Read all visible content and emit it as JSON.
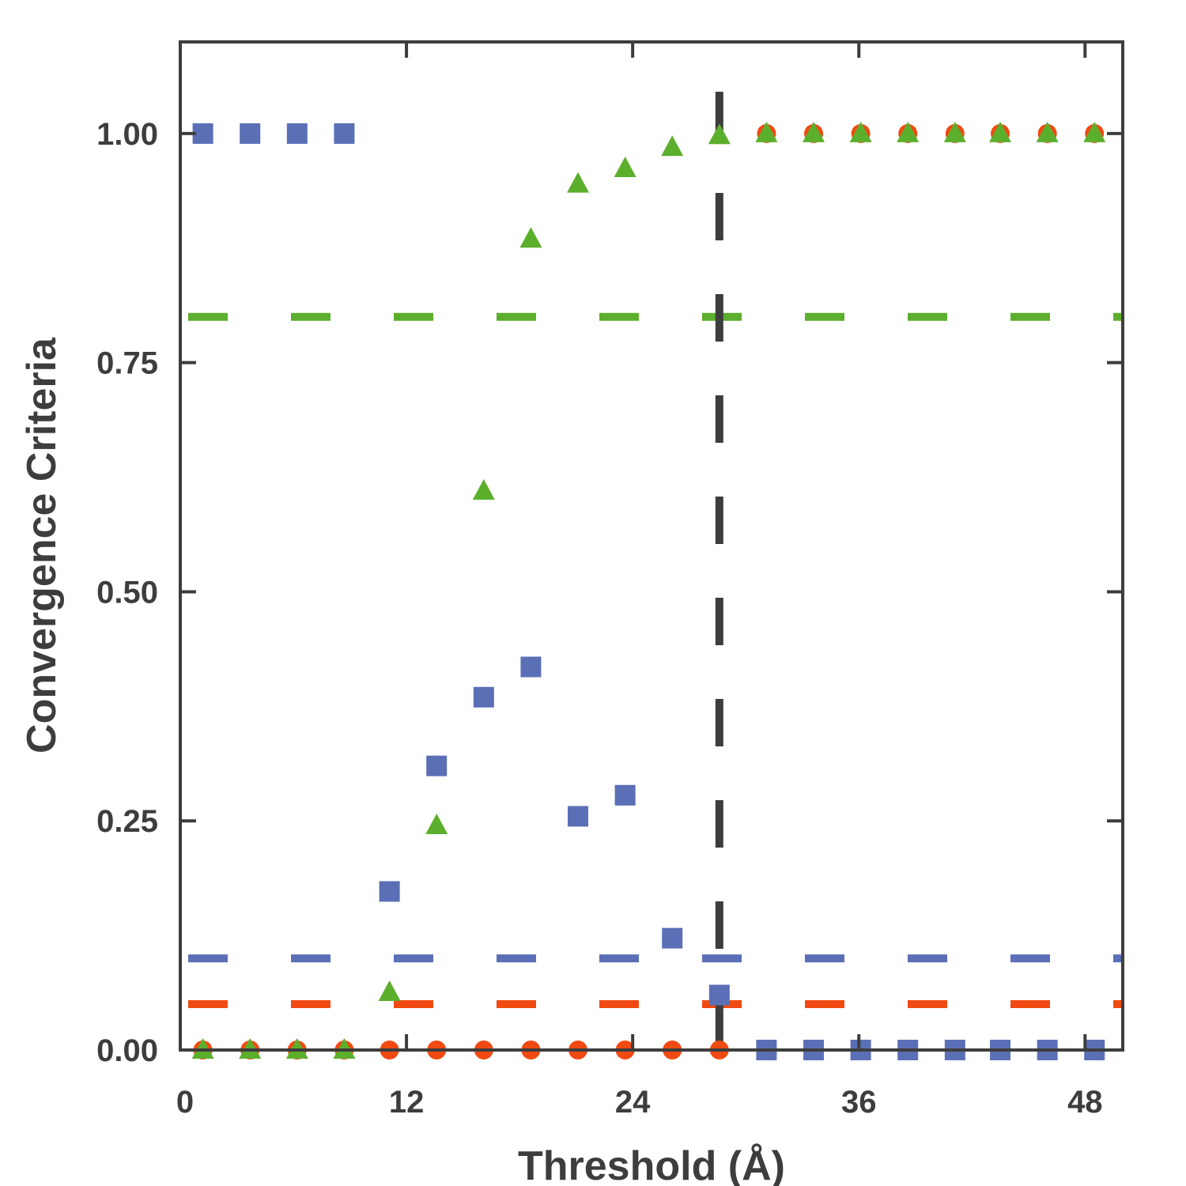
{
  "chart_data": {
    "type": "scatter",
    "title": "",
    "xlabel": "Threshold (Å)",
    "ylabel": "Convergence Criteria",
    "xlim": [
      0,
      50
    ],
    "ylim": [
      0,
      1.1
    ],
    "xticks": [
      0,
      12,
      24,
      36,
      48
    ],
    "xtick_labels": [
      "0",
      "12",
      "24",
      "36",
      "48"
    ],
    "yticks": [
      0,
      0.25,
      0.5,
      0.75,
      1.0
    ],
    "ytick_labels": [
      "0.00",
      "0.25",
      "0.50",
      "0.75",
      "1.00"
    ],
    "grid": false,
    "legend": "none",
    "x": [
      1.2,
      3.7,
      6.2,
      8.7,
      11.1,
      13.6,
      16.1,
      18.6,
      21.1,
      23.6,
      26.1,
      28.6,
      31.1,
      33.6,
      36.1,
      38.6,
      41.1,
      43.5,
      46.0,
      48.5
    ],
    "series": [
      {
        "marker": "square",
        "color": "#5b6fb6",
        "values": [
          1.0,
          1.0,
          1.0,
          1.0,
          0.173,
          0.31,
          0.385,
          0.418,
          0.255,
          0.278,
          0.122,
          0.06,
          0.0,
          0.0,
          0.0,
          0.0,
          0.0,
          0.0,
          0.0,
          0.0
        ]
      },
      {
        "marker": "circle",
        "color": "#f04a12",
        "values": [
          0.0,
          0.0,
          0.0,
          0.0,
          0.0,
          0.0,
          0.0,
          0.0,
          0.0,
          0.0,
          0.0,
          0.0,
          1.0,
          1.0,
          1.0,
          1.0,
          1.0,
          1.0,
          1.0,
          1.0
        ]
      },
      {
        "marker": "triangle",
        "color": "#5caf2c",
        "values": [
          0.0,
          0.0,
          0.0,
          0.0,
          0.063,
          0.245,
          0.61,
          0.885,
          0.945,
          0.962,
          0.985,
          0.998,
          1.0,
          1.0,
          1.0,
          1.0,
          1.0,
          1.0,
          1.0,
          1.0
        ]
      }
    ],
    "reference_lines": [
      {
        "orientation": "horizontal",
        "value": 0.8,
        "color": "#5caf2c",
        "style": "dashed"
      },
      {
        "orientation": "horizontal",
        "value": 0.1,
        "color": "#5b6fb6",
        "style": "dashed"
      },
      {
        "orientation": "horizontal",
        "value": 0.05,
        "color": "#f04a12",
        "style": "dashed"
      },
      {
        "orientation": "vertical",
        "value": 28.6,
        "color": "#3d3d3d",
        "style": "dashed"
      }
    ]
  }
}
